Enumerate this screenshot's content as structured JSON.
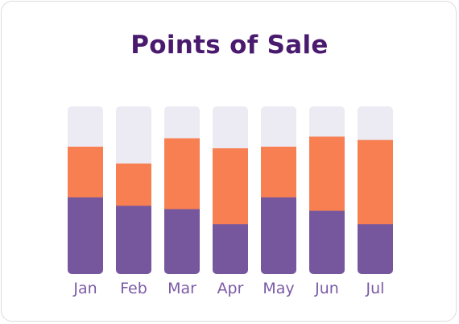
{
  "chart_data": {
    "type": "bar",
    "stacked": true,
    "title": "Points of Sale",
    "categories": [
      "Jan",
      "Feb",
      "Mar",
      "Apr",
      "May",
      "Jun",
      "Jul"
    ],
    "series": [
      {
        "values": [
          46,
          41,
          39,
          30,
          46,
          38,
          30
        ],
        "color": "#76579e"
      },
      {
        "values": [
          30,
          25,
          42,
          45,
          30,
          44,
          50
        ],
        "color": "#f77f52"
      },
      {
        "values": [
          24,
          34,
          19,
          25,
          24,
          18,
          20
        ],
        "color": "#ecebf4"
      }
    ],
    "ylim": [
      0,
      100
    ],
    "grid": false,
    "legend": "none"
  }
}
